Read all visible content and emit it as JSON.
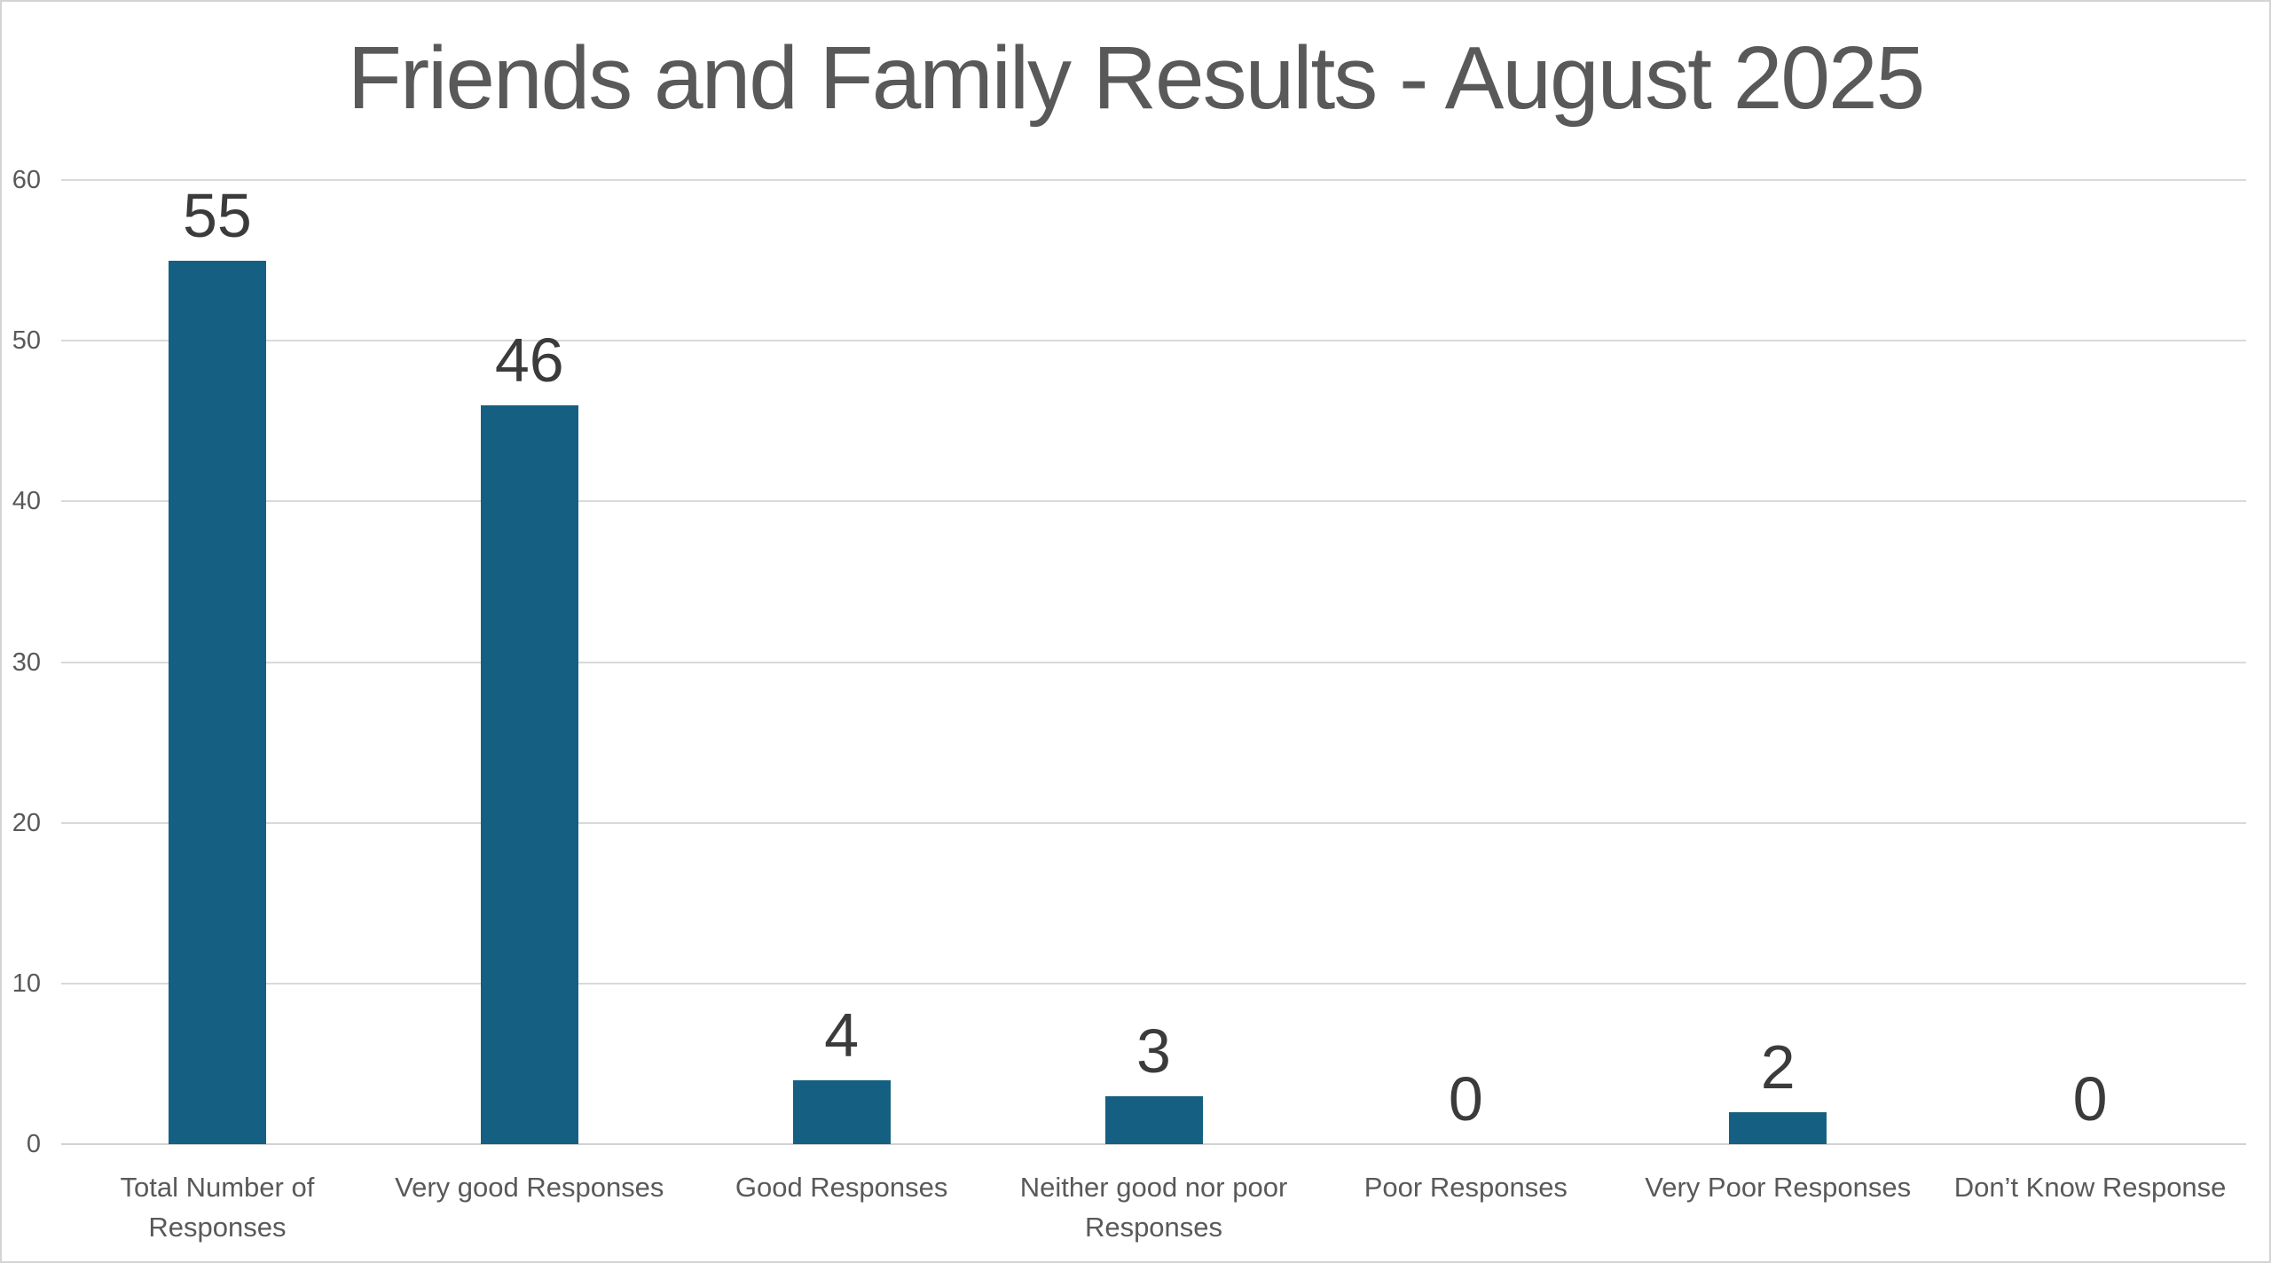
{
  "title": "Friends and Family Results - August 2025",
  "chart_data": {
    "type": "bar",
    "title": "Friends and Family Results - August 2025",
    "categories": [
      "Total Number of Responses",
      "Very good Responses",
      "Good Responses",
      "Neither good nor poor Responses",
      "Poor Responses",
      "Very Poor Responses",
      "Don’t Know Response"
    ],
    "category_label_lines": [
      [
        "Total Number of",
        "Responses"
      ],
      [
        "Very good Responses"
      ],
      [
        "Good Responses"
      ],
      [
        "Neither good nor poor",
        "Responses"
      ],
      [
        "Poor Responses"
      ],
      [
        "Very Poor Responses"
      ],
      [
        "Don’t Know Response"
      ]
    ],
    "values": [
      55,
      46,
      4,
      3,
      0,
      2,
      0
    ],
    "bar_value_labels": [
      "55",
      "46",
      "4",
      "3",
      "0",
      "2",
      "0"
    ],
    "xlabel": "",
    "ylabel": "",
    "ylim": [
      0,
      60
    ],
    "yticks": [
      0,
      10,
      20,
      30,
      40,
      50,
      60
    ],
    "grid": true,
    "legend": false,
    "colors": {
      "bar": "#156082",
      "title_text": "#595959",
      "axis_text": "#595959",
      "value_label_text": "#3B3B3B",
      "gridline": "#D9D9D9",
      "axis_line": "#D2D2D2",
      "frame_border": "#D4D4D4",
      "background": "#FFFFFF"
    }
  }
}
